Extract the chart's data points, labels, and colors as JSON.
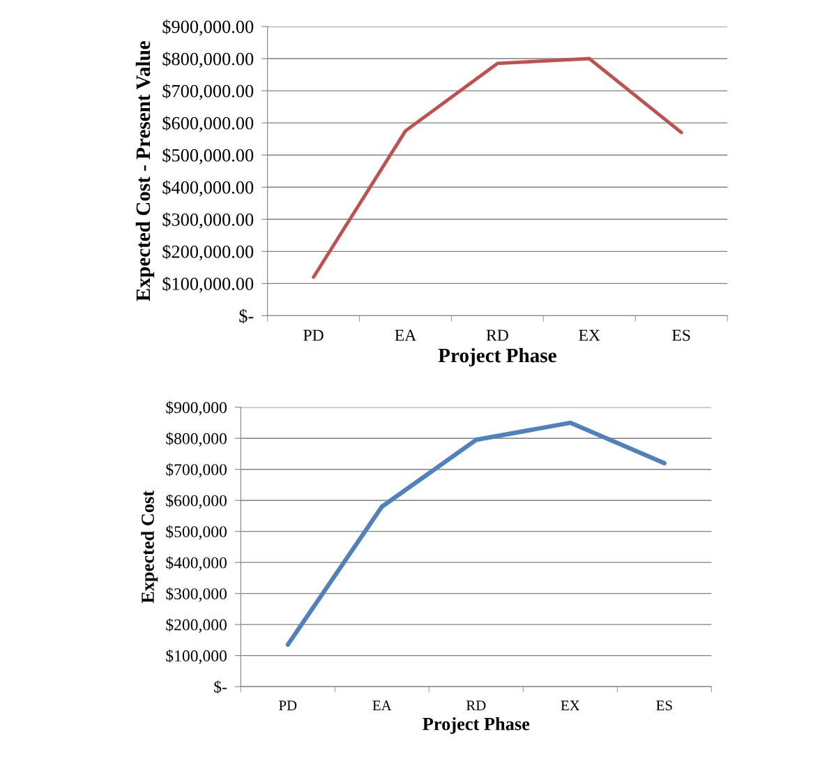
{
  "chart_data": [
    {
      "type": "line",
      "categories": [
        "PD",
        "EA",
        "RD",
        "EX",
        "ES"
      ],
      "xlabel": "Project Phase",
      "ylabel": "Expected Cost - Present Value",
      "series": [
        {
          "color": "#c0504d",
          "values": [
            120000,
            575000,
            785000,
            800000,
            570000
          ]
        }
      ],
      "ylim": [
        0,
        900000
      ],
      "yticks": [
        {
          "value": 0,
          "label": "$-"
        },
        {
          "value": 100000,
          "label": "$100,000.00"
        },
        {
          "value": 200000,
          "label": "$200,000.00"
        },
        {
          "value": 300000,
          "label": "$300,000.00"
        },
        {
          "value": 400000,
          "label": "$400,000.00"
        },
        {
          "value": 500000,
          "label": "$500,000.00"
        },
        {
          "value": 600000,
          "label": "$600,000.00"
        },
        {
          "value": 700000,
          "label": "$700,000.00"
        },
        {
          "value": 800000,
          "label": "$800,000.00"
        },
        {
          "value": 900000,
          "label": "$900,000.00"
        }
      ],
      "grid": "y",
      "marker": "none",
      "line_style": "solid"
    },
    {
      "type": "line",
      "categories": [
        "PD",
        "EA",
        "RD",
        "EX",
        "ES"
      ],
      "xlabel": "Project Phase",
      "ylabel": "Expected Cost",
      "series": [
        {
          "color": "#4f81bd",
          "values": [
            135000,
            580000,
            795000,
            850000,
            720000
          ]
        }
      ],
      "ylim": [
        0,
        900000
      ],
      "yticks": [
        {
          "value": 0,
          "label": "$-"
        },
        {
          "value": 100000,
          "label": "$100,000"
        },
        {
          "value": 200000,
          "label": "$200,000"
        },
        {
          "value": 300000,
          "label": "$300,000"
        },
        {
          "value": 400000,
          "label": "$400,000"
        },
        {
          "value": 500000,
          "label": "$500,000"
        },
        {
          "value": 600000,
          "label": "$600,000"
        },
        {
          "value": 700000,
          "label": "$700,000"
        },
        {
          "value": 800000,
          "label": "$800,000"
        },
        {
          "value": 900000,
          "label": "$900,000"
        }
      ],
      "grid": "y",
      "marker": "none",
      "line_style": "solid"
    }
  ]
}
